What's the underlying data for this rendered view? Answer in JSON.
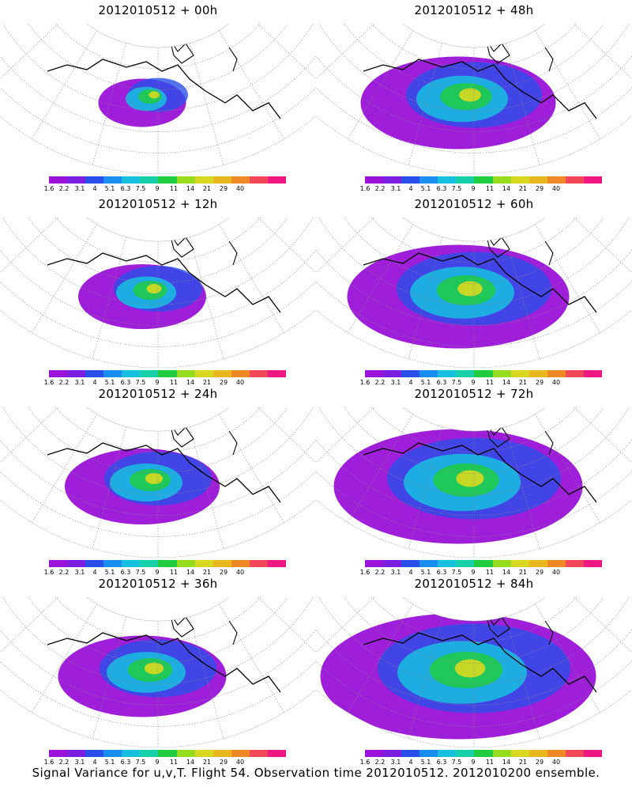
{
  "panels": [
    {
      "title": "2012010512 + 00h",
      "spread": 0.15
    },
    {
      "title": "2012010512 + 48h",
      "spread": 0.55
    },
    {
      "title": "2012010512 + 12h",
      "spread": 0.3
    },
    {
      "title": "2012010512 + 60h",
      "spread": 0.65
    },
    {
      "title": "2012010512 + 24h",
      "spread": 0.4
    },
    {
      "title": "2012010512 + 72h",
      "spread": 0.75
    },
    {
      "title": "2012010512 + 36h",
      "spread": 0.45
    },
    {
      "title": "2012010512 + 84h",
      "spread": 0.85
    }
  ],
  "colorbar": {
    "labels": [
      "1.6",
      "2.2",
      "3.1",
      "4",
      "5.1",
      "6.3",
      "7.5",
      "9",
      "11",
      "14",
      "21",
      "29",
      "40"
    ],
    "colors": [
      "#9a12d8",
      "#7a1ee0",
      "#2a4fe8",
      "#1a8ef0",
      "#18c0e0",
      "#18d0a8",
      "#20cc40",
      "#98dc20",
      "#d8d820",
      "#e8b820",
      "#f08828",
      "#f04858",
      "#f01880"
    ]
  },
  "caption": "Signal Variance for u,v,T. Flight 54. Observation time 2012010512. 2012010200 ensemble."
}
